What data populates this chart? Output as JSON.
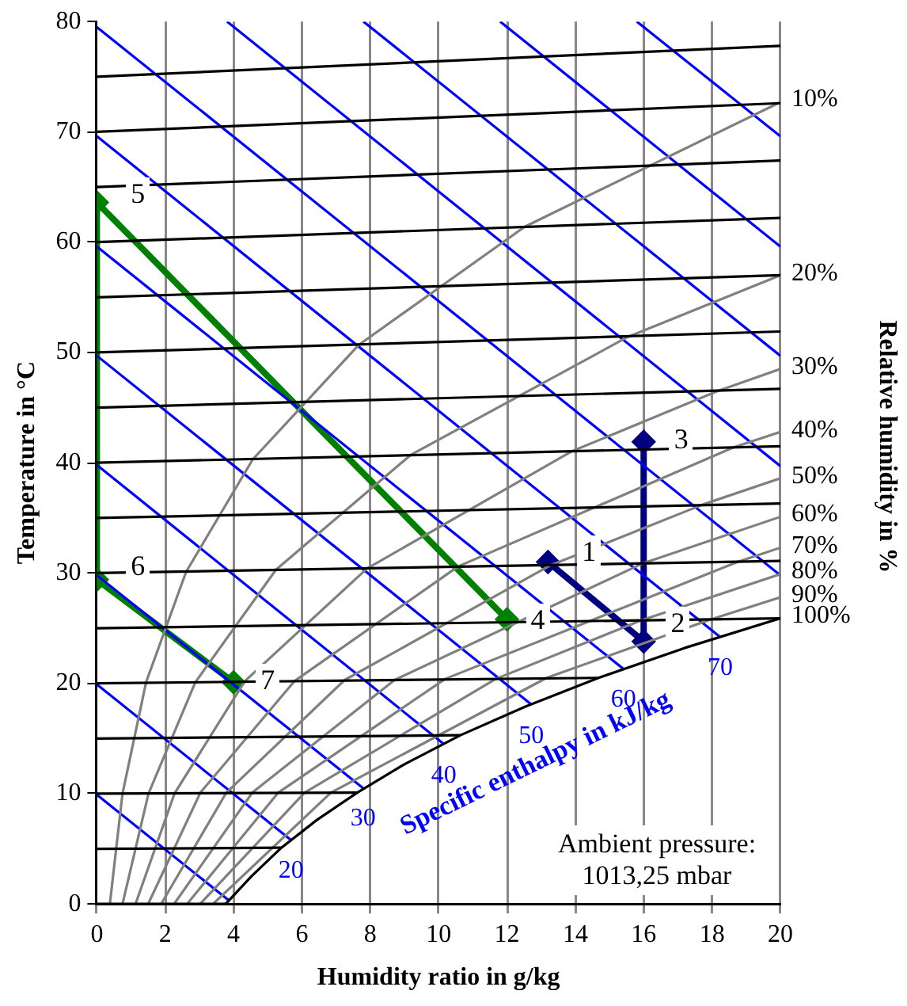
{
  "chart_data": {
    "type": "line",
    "xlabel": "Humidity ratio in g/kg",
    "ylabel": "Temperature in °C",
    "y2label": "Relative humidity in %",
    "xlim": [
      0,
      20
    ],
    "xticks": [
      0,
      2,
      4,
      6,
      8,
      10,
      12,
      14,
      16,
      18,
      20
    ],
    "ylim": [
      0,
      80
    ],
    "yticks": [
      0,
      10,
      20,
      30,
      40,
      50,
      60,
      70,
      80
    ],
    "grid": "x",
    "legend": false,
    "marker": "none",
    "line_style": "solid",
    "series": [
      {
        "color": "#000000",
        "x": [
          0,
          3.77
        ],
        "values": [
          0,
          0
        ]
      },
      {
        "color": "#000000",
        "x": [
          0,
          5.4
        ],
        "values": [
          5,
          5.1
        ]
      },
      {
        "color": "#000000",
        "x": [
          0,
          7.62
        ],
        "values": [
          10,
          10.1
        ]
      },
      {
        "color": "#000000",
        "x": [
          0,
          10.64
        ],
        "values": [
          15,
          15.3
        ]
      },
      {
        "color": "#000000",
        "x": [
          0,
          14.68
        ],
        "values": [
          20,
          20.5
        ]
      },
      {
        "color": "#000000",
        "x": [
          0,
          20
        ],
        "values": [
          25,
          25.9
        ]
      },
      {
        "color": "#000000",
        "x": [
          0,
          20
        ],
        "values": [
          30,
          31.1
        ]
      },
      {
        "color": "#000000",
        "x": [
          0,
          20
        ],
        "values": [
          35,
          36.3
        ]
      },
      {
        "color": "#000000",
        "x": [
          0,
          20
        ],
        "values": [
          40,
          41.5
        ]
      },
      {
        "color": "#000000",
        "x": [
          0,
          20
        ],
        "values": [
          45,
          46.7
        ]
      },
      {
        "color": "#000000",
        "x": [
          0,
          20
        ],
        "values": [
          50,
          51.9
        ]
      },
      {
        "color": "#000000",
        "x": [
          0,
          20
        ],
        "values": [
          55,
          57
        ]
      },
      {
        "color": "#000000",
        "x": [
          0,
          20
        ],
        "values": [
          60,
          62.2
        ]
      },
      {
        "color": "#000000",
        "x": [
          0,
          20
        ],
        "values": [
          65,
          67.4
        ]
      },
      {
        "color": "#000000",
        "x": [
          0,
          20
        ],
        "values": [
          70,
          72.6
        ]
      },
      {
        "color": "#000000",
        "x": [
          0,
          20
        ],
        "values": [
          75,
          77.8
        ]
      },
      {
        "color": "#808080",
        "x": [
          0.38,
          0.75,
          1.44,
          2.61,
          4.56,
          7.67,
          12.52,
          20
        ],
        "values": [
          0,
          10,
          20.1,
          30.1,
          40.3,
          50.7,
          61.4,
          72.7
        ]
      },
      {
        "color": "#808080",
        "x": [
          0.75,
          1.51,
          2.88,
          5.24,
          9.18,
          15.53,
          20
        ],
        "values": [
          0,
          10,
          20.1,
          30.3,
          40.7,
          51.4,
          57
        ]
      },
      {
        "color": "#808080",
        "x": [
          1.13,
          2.27,
          4.33,
          7.9,
          13.87,
          18.16,
          20
        ],
        "values": [
          0,
          10,
          20.2,
          30.4,
          41,
          46.5,
          48.5
        ]
      },
      {
        "color": "#808080",
        "x": [
          1.5,
          3.03,
          5.78,
          10.57,
          18.63,
          20
        ],
        "values": [
          0,
          10.1,
          20.2,
          30.6,
          41.4,
          42.8
        ]
      },
      {
        "color": "#808080",
        "x": [
          1.88,
          3.79,
          7.25,
          13.27,
          17.72,
          20
        ],
        "values": [
          0,
          10.1,
          20.3,
          30.7,
          36.2,
          38.6
        ]
      },
      {
        "color": "#808080",
        "x": [
          2.26,
          4.55,
          8.71,
          15.99,
          20
        ],
        "values": [
          0,
          10.1,
          20.3,
          30.9,
          35.1
        ]
      },
      {
        "color": "#808080",
        "x": [
          2.64,
          5.31,
          10.19,
          18.74,
          20
        ],
        "values": [
          0,
          10.1,
          20.4,
          31,
          32.3
        ]
      },
      {
        "color": "#808080",
        "x": [
          3.02,
          6.08,
          11.67,
          15.92,
          20
        ],
        "values": [
          0,
          10.1,
          20.4,
          25.7,
          29.9
        ]
      },
      {
        "color": "#808080",
        "x": [
          3.4,
          6.85,
          13.16,
          17.96,
          20
        ],
        "values": [
          0,
          10.1,
          20.5,
          25.8,
          27.8
        ]
      },
      {
        "color": "#000000",
        "x": [
          3.77,
          4.52,
          5.4,
          6.43,
          7.62,
          9.02,
          10.64,
          12.54,
          14.68,
          17.19,
          20
        ],
        "values": [
          0,
          2.5,
          5.1,
          7.6,
          10.1,
          12.7,
          15.3,
          17.9,
          20.5,
          23.2,
          25.9
        ]
      },
      {
        "color": "#0000ff",
        "x": [
          0,
          3.87
        ],
        "values": [
          9.9,
          0.3
        ]
      },
      {
        "color": "#0000ff",
        "x": [
          0,
          5.68
        ],
        "values": [
          19.9,
          5.8
        ]
      },
      {
        "color": "#0000ff",
        "x": [
          0,
          7.79
        ],
        "values": [
          29.8,
          10.5
        ]
      },
      {
        "color": "#0000ff",
        "x": [
          0,
          10.15
        ],
        "values": [
          39.8,
          14.5
        ]
      },
      {
        "color": "#0000ff",
        "x": [
          0,
          12.71
        ],
        "values": [
          49.7,
          18.1
        ]
      },
      {
        "color": "#0000ff",
        "x": [
          0,
          15.41
        ],
        "values": [
          59.6,
          21.3
        ]
      },
      {
        "color": "#0000ff",
        "x": [
          0,
          18.24
        ],
        "values": [
          69.6,
          24.2
        ]
      },
      {
        "color": "#0000ff",
        "x": [
          0,
          20
        ],
        "values": [
          79.5,
          29.8
        ]
      },
      {
        "color": "#0000ff",
        "x": [
          3.81,
          20
        ],
        "values": [
          80,
          39.7
        ]
      },
      {
        "color": "#0000ff",
        "x": [
          7.8,
          20
        ],
        "values": [
          80,
          49.7
        ]
      },
      {
        "color": "#0000ff",
        "x": [
          11.8,
          20
        ],
        "values": [
          80,
          59.6
        ]
      },
      {
        "color": "#0000ff",
        "x": [
          15.8,
          20
        ],
        "values": [
          80,
          69.6
        ]
      },
      {
        "color": "#008000",
        "marker": "diamond",
        "x": [
          4,
          0,
          0,
          12
        ],
        "values": [
          20.1,
          29.4,
          63.6,
          25.8
        ]
      },
      {
        "color": "#000080",
        "marker": "diamond",
        "x": [
          13.2,
          16,
          16
        ],
        "values": [
          31,
          23.8,
          41.9
        ]
      }
    ],
    "annotations": [
      {
        "text": "1",
        "x": 14.4,
        "y": 32.0
      },
      {
        "text": "2",
        "x": 17.0,
        "y": 25.5
      },
      {
        "text": "3",
        "x": 17.1,
        "y": 42.1
      },
      {
        "text": "4",
        "x": 12.9,
        "y": 25.8
      },
      {
        "text": "5",
        "x": 1.2,
        "y": 64.5
      },
      {
        "text": "6",
        "x": 1.2,
        "y": 30.7
      },
      {
        "text": "7",
        "x": 5.0,
        "y": 20.3
      },
      {
        "text": "20",
        "x": 5.68,
        "y": 5.8
      },
      {
        "text": "30",
        "x": 7.79,
        "y": 10.5
      },
      {
        "text": "40",
        "x": 10.15,
        "y": 14.5
      },
      {
        "text": "50",
        "x": 12.71,
        "y": 18.1
      },
      {
        "text": "60",
        "x": 15.41,
        "y": 21.3
      },
      {
        "text": "70",
        "x": 18.24,
        "y": 24.2
      },
      {
        "text": "10%",
        "x": 20,
        "y": 72.7
      },
      {
        "text": "20%",
        "x": 20,
        "y": 57
      },
      {
        "text": "30%",
        "x": 20,
        "y": 48.5
      },
      {
        "text": "40%",
        "x": 20,
        "y": 42.8
      },
      {
        "text": "50%",
        "x": 20,
        "y": 38.6
      },
      {
        "text": "60%",
        "x": 20,
        "y": 35.1
      },
      {
        "text": "70%",
        "x": 20,
        "y": 32.3
      },
      {
        "text": "80%",
        "x": 20,
        "y": 29.9
      },
      {
        "text": "90%",
        "x": 20,
        "y": 27.8
      },
      {
        "text": "100%",
        "x": 20,
        "y": 25.9
      },
      "Specific enthalpy in kJ/kg",
      "Ambient pressure: 1013,25 mbar"
    ]
  }
}
